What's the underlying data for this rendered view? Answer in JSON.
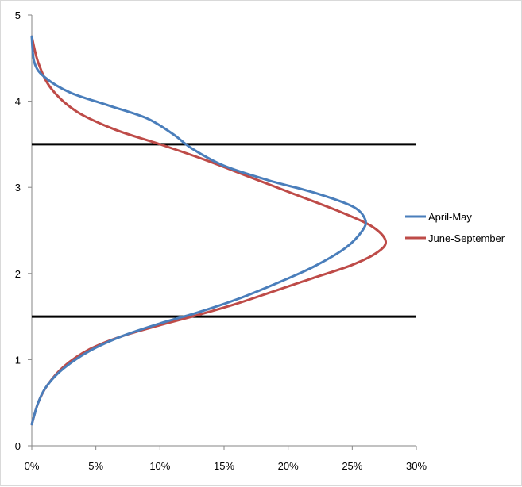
{
  "chart_data": {
    "type": "line",
    "title": "",
    "xlabel": "",
    "ylabel": "",
    "xlim": [
      0,
      0.3
    ],
    "ylim": [
      0,
      5
    ],
    "x_ticks": [
      {
        "value": 0,
        "label": "0%"
      },
      {
        "value": 0.05,
        "label": "5%"
      },
      {
        "value": 0.1,
        "label": "10%"
      },
      {
        "value": 0.15,
        "label": "15%"
      },
      {
        "value": 0.2,
        "label": "20%"
      },
      {
        "value": 0.25,
        "label": "25%"
      },
      {
        "value": 0.3,
        "label": "30%"
      }
    ],
    "y_ticks": [
      {
        "value": 0,
        "label": "0"
      },
      {
        "value": 1,
        "label": "1"
      },
      {
        "value": 2,
        "label": "2"
      },
      {
        "value": 3,
        "label": "3"
      },
      {
        "value": 4,
        "label": "4"
      },
      {
        "value": 5,
        "label": "5"
      }
    ],
    "grid": false,
    "legend_position": "right",
    "series": [
      {
        "name": "April-May",
        "color": "#4a7ebb",
        "points": [
          {
            "x": 0.0,
            "y": 0.25
          },
          {
            "x": 0.005,
            "y": 0.5
          },
          {
            "x": 0.012,
            "y": 0.7
          },
          {
            "x": 0.025,
            "y": 0.9
          },
          {
            "x": 0.045,
            "y": 1.1
          },
          {
            "x": 0.07,
            "y": 1.27
          },
          {
            "x": 0.1,
            "y": 1.42
          },
          {
            "x": 0.13,
            "y": 1.55
          },
          {
            "x": 0.16,
            "y": 1.7
          },
          {
            "x": 0.19,
            "y": 1.88
          },
          {
            "x": 0.22,
            "y": 2.08
          },
          {
            "x": 0.245,
            "y": 2.3
          },
          {
            "x": 0.258,
            "y": 2.5
          },
          {
            "x": 0.26,
            "y": 2.63
          },
          {
            "x": 0.25,
            "y": 2.78
          },
          {
            "x": 0.22,
            "y": 2.94
          },
          {
            "x": 0.185,
            "y": 3.08
          },
          {
            "x": 0.15,
            "y": 3.25
          },
          {
            "x": 0.125,
            "y": 3.45
          },
          {
            "x": 0.11,
            "y": 3.62
          },
          {
            "x": 0.09,
            "y": 3.8
          },
          {
            "x": 0.06,
            "y": 3.95
          },
          {
            "x": 0.03,
            "y": 4.1
          },
          {
            "x": 0.01,
            "y": 4.28
          },
          {
            "x": 0.002,
            "y": 4.45
          },
          {
            "x": 0.0,
            "y": 4.75
          }
        ]
      },
      {
        "name": "June-September",
        "color": "#be4b48",
        "points": [
          {
            "x": 0.0,
            "y": 0.25
          },
          {
            "x": 0.005,
            "y": 0.5
          },
          {
            "x": 0.012,
            "y": 0.7
          },
          {
            "x": 0.025,
            "y": 0.92
          },
          {
            "x": 0.045,
            "y": 1.12
          },
          {
            "x": 0.07,
            "y": 1.27
          },
          {
            "x": 0.1,
            "y": 1.4
          },
          {
            "x": 0.13,
            "y": 1.52
          },
          {
            "x": 0.16,
            "y": 1.65
          },
          {
            "x": 0.19,
            "y": 1.8
          },
          {
            "x": 0.22,
            "y": 1.95
          },
          {
            "x": 0.25,
            "y": 2.1
          },
          {
            "x": 0.27,
            "y": 2.25
          },
          {
            "x": 0.276,
            "y": 2.38
          },
          {
            "x": 0.265,
            "y": 2.55
          },
          {
            "x": 0.24,
            "y": 2.72
          },
          {
            "x": 0.205,
            "y": 2.92
          },
          {
            "x": 0.17,
            "y": 3.12
          },
          {
            "x": 0.135,
            "y": 3.32
          },
          {
            "x": 0.1,
            "y": 3.5
          },
          {
            "x": 0.065,
            "y": 3.67
          },
          {
            "x": 0.035,
            "y": 3.88
          },
          {
            "x": 0.015,
            "y": 4.15
          },
          {
            "x": 0.005,
            "y": 4.45
          },
          {
            "x": 0.0,
            "y": 4.75
          }
        ]
      }
    ],
    "reference_lines": [
      {
        "y": 3.5,
        "x_from": 0,
        "x_to": 0.3,
        "color": "#000000"
      },
      {
        "y": 1.5,
        "x_from": 0,
        "x_to": 0.3,
        "color": "#000000"
      }
    ]
  }
}
